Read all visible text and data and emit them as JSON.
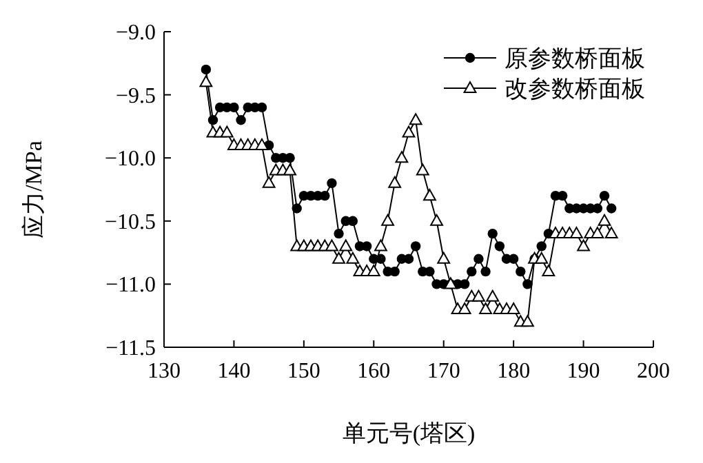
{
  "chart_data": {
    "type": "line",
    "xlabel": "单元号(塔区)",
    "ylabel": "应力/MPa",
    "x": [
      136,
      137,
      138,
      139,
      140,
      141,
      142,
      143,
      144,
      145,
      146,
      147,
      148,
      149,
      150,
      151,
      152,
      153,
      154,
      155,
      156,
      157,
      158,
      159,
      160,
      161,
      162,
      163,
      164,
      165,
      166,
      167,
      168,
      169,
      170,
      171,
      172,
      173,
      174,
      175,
      176,
      177,
      178,
      179,
      180,
      181,
      182,
      183,
      184,
      185,
      186,
      187,
      188,
      189,
      190,
      191,
      192,
      193,
      194
    ],
    "series": [
      {
        "name": "原参数桥面板",
        "color": "#000000",
        "marker": "circle",
        "values": [
          -9.3,
          -9.7,
          -9.6,
          -9.6,
          -9.6,
          -9.7,
          -9.6,
          -9.6,
          -9.6,
          -9.9,
          -10.0,
          -10.0,
          -10.0,
          -10.4,
          -10.3,
          -10.3,
          -10.3,
          -10.3,
          -10.2,
          -10.6,
          -10.5,
          -10.5,
          -10.7,
          -10.7,
          -10.8,
          -10.8,
          -10.9,
          -10.9,
          -10.8,
          -10.8,
          -10.7,
          -10.9,
          -10.9,
          -11.0,
          -11.0,
          -11.0,
          -11.0,
          -11.0,
          -10.9,
          -10.8,
          -10.9,
          -10.6,
          -10.7,
          -10.8,
          -10.8,
          -10.9,
          -11.0,
          -10.8,
          -10.7,
          -10.6,
          -10.3,
          -10.3,
          -10.4,
          -10.4,
          -10.4,
          -10.4,
          -10.4,
          -10.3,
          -10.4
        ]
      },
      {
        "name": "改参数桥面板",
        "color": "#000000",
        "marker": "triangle",
        "values": [
          -9.4,
          -9.8,
          -9.8,
          -9.8,
          -9.9,
          -9.9,
          -9.9,
          -9.9,
          -9.9,
          -10.2,
          -10.1,
          -10.1,
          -10.1,
          -10.7,
          -10.7,
          -10.7,
          -10.7,
          -10.7,
          -10.7,
          -10.8,
          -10.7,
          -10.8,
          -10.9,
          -10.9,
          -10.9,
          -10.7,
          -10.5,
          -10.2,
          -10.0,
          -9.8,
          -9.7,
          -10.1,
          -10.3,
          -10.5,
          -10.8,
          -11.0,
          -11.2,
          -11.2,
          -11.1,
          -11.1,
          -11.2,
          -11.1,
          -11.2,
          -11.2,
          -11.2,
          -11.3,
          -11.3,
          -10.8,
          -10.8,
          -10.9,
          -10.6,
          -10.6,
          -10.6,
          -10.6,
          -10.7,
          -10.6,
          -10.6,
          -10.5,
          -10.6
        ]
      }
    ],
    "xlim": [
      130,
      200
    ],
    "xticks": [
      130,
      140,
      150,
      160,
      170,
      180,
      190,
      200
    ],
    "ylim": [
      -11.5,
      -9.0
    ],
    "yticks": [
      {
        "value": -11.5,
        "label": "−11.5"
      },
      {
        "value": -11.0,
        "label": "−11.0"
      },
      {
        "value": -10.5,
        "label": "−10.5"
      },
      {
        "value": -10.0,
        "label": "−10.0"
      },
      {
        "value": -9.5,
        "label": "−9.5"
      },
      {
        "value": -9.0,
        "label": "−9.0"
      }
    ],
    "legend": "top right"
  }
}
